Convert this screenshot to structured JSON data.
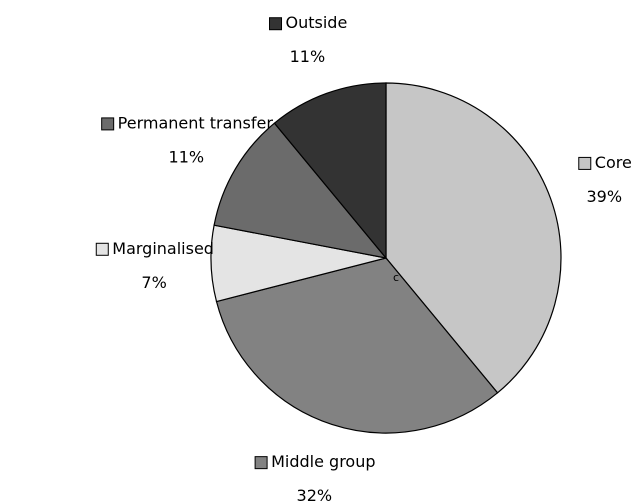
{
  "chart_data": {
    "type": "pie",
    "categories": [
      "Core",
      "Middle group",
      "Marginalised",
      "Permanent transfer",
      "Outside"
    ],
    "values": [
      39,
      32,
      7,
      11,
      11
    ],
    "value_labels": [
      "39%",
      "32%",
      "7%",
      "11%",
      "11%"
    ],
    "colors": [
      "#c6c6c6",
      "#828282",
      "#e4e4e4",
      "#6b6b6b",
      "#333333"
    ],
    "annotation": "c"
  }
}
